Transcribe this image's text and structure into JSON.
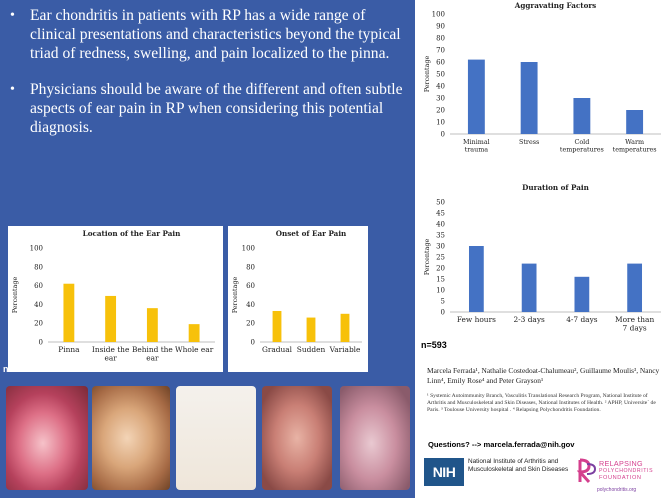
{
  "bullets": [
    "Ear chondritis in patients with RP has a wide range of clinical presentations and characteristics beyond the typical triad of redness, swelling, and pain localized to the pinna.",
    "Physicians should be aware of the different and often subtle aspects of ear pain in RP when considering this potential diagnosis."
  ],
  "n_label": "n=593",
  "chart_data": [
    {
      "type": "bar",
      "title": "Location of the Ear Pain",
      "ylabel": "Percentage",
      "categories": [
        "Pinna",
        "Inside the ear",
        "Behind the ear",
        "Whole ear"
      ],
      "values": [
        62,
        49,
        36,
        19
      ],
      "ylim": [
        0,
        100
      ],
      "yticks": [
        0,
        20,
        40,
        60,
        80,
        100
      ],
      "color": "#f7c10a"
    },
    {
      "type": "bar",
      "title": "Onset of Ear Pain",
      "ylabel": "Percentage",
      "categories": [
        "Gradual",
        "Sudden",
        "Variable"
      ],
      "values": [
        33,
        26,
        30
      ],
      "ylim": [
        0,
        100
      ],
      "yticks": [
        0,
        20,
        40,
        60,
        80,
        100
      ],
      "color": "#f7c10a"
    },
    {
      "type": "bar",
      "title": "Aggravating Factors",
      "ylabel": "Percentage",
      "categories": [
        "Minimal trauma",
        "Stress",
        "Cold temperatures",
        "Warm temperatures"
      ],
      "values": [
        62,
        60,
        30,
        20
      ],
      "ylim": [
        0,
        100
      ],
      "yticks": [
        0,
        10,
        20,
        30,
        40,
        50,
        60,
        70,
        80,
        90,
        100
      ],
      "color": "#4472c4"
    },
    {
      "type": "bar",
      "title": "Duration of Pain",
      "ylabel": "Percentage",
      "categories": [
        "Few hours",
        "2-3 days",
        "4-7 days",
        "More than 7 days"
      ],
      "values": [
        30,
        22,
        16,
        22
      ],
      "ylim": [
        0,
        50
      ],
      "yticks": [
        0,
        5,
        10,
        15,
        20,
        25,
        30,
        35,
        40,
        45,
        50
      ],
      "color": "#4472c4"
    }
  ],
  "authors": "Marcela Ferrada¹, Nathalie Costedoat-Chalumeau², Guillaume Moulis³, Nancy Linn⁴, Emily Rose⁴ and Peter Grayson¹",
  "affiliations": "¹ Systemic Autoimmunity Branch, Vasculitis Translational Research Program, National Institute of Arthritis and Musculoskeletal and Skin Diseases, National Institutes of Health. ² APHP, Universite´ de Paris. ³ Toulouse University hospital . ⁴ Relapsing Polychondritis Foundation.",
  "questions": "Questions? --> marcela.ferrada@nih.gov",
  "nih": {
    "logo": "NIH",
    "text": "National Institute of Arthritis and Musculoskeletal and Skin Diseases"
  },
  "rp": {
    "mark": "RP",
    "line1": "RELAPSING",
    "line2": "POLYCHONDRITIS",
    "line3": "FOUNDATION",
    "url": "polychondritis.org"
  }
}
